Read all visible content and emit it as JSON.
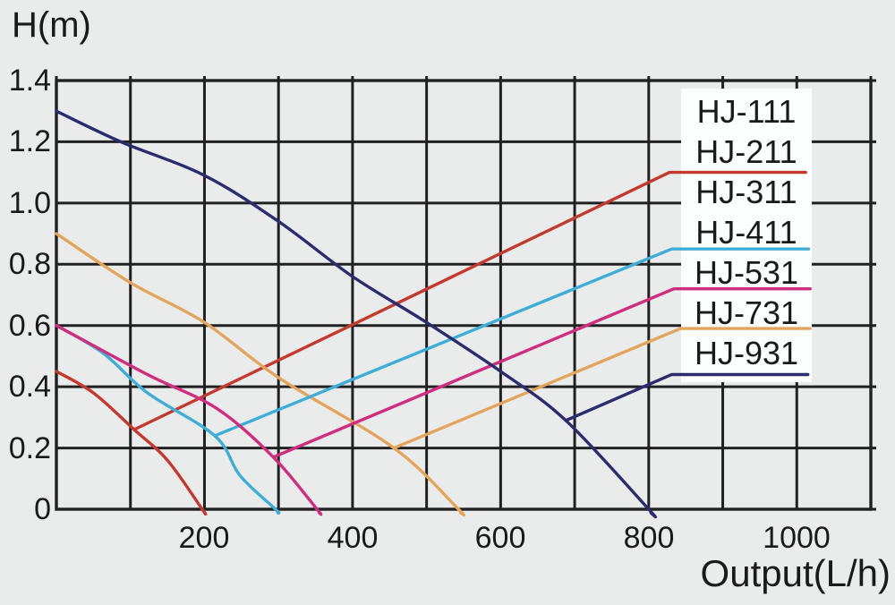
{
  "y_axis_title": "H(m)",
  "x_axis_title": "Output(L/h)",
  "axes": {
    "x": {
      "min": 0,
      "max": 1100,
      "grid_step": 100,
      "tick_values": [
        200,
        400,
        600,
        800,
        1000
      ],
      "tick_labels": [
        "200",
        "400",
        "600",
        "800",
        "1000"
      ]
    },
    "y": {
      "min": 0,
      "max": 1.4,
      "grid_step": 0.2,
      "tick_values": [
        1.4,
        1.2,
        1.0,
        0.8,
        0.6,
        0.4,
        0.2,
        0
      ],
      "tick_labels": [
        "1.4",
        "1.2",
        "1.0",
        "0.8",
        "0.6",
        "0.4",
        "0.2",
        "0"
      ]
    }
  },
  "legend": {
    "items": [
      "HJ-111",
      "HJ-211",
      "HJ-311",
      "HJ-411",
      "HJ-531",
      "HJ-731",
      "HJ-931"
    ]
  },
  "colors": {
    "background": "#e9eceb",
    "grid": "#212121",
    "text": "#1a1a1a",
    "legend_background": "#fcfdfd",
    "red": "#c4392f",
    "cyan": "#3fadd5",
    "magenta": "#ce2e7d",
    "orange": "#e3a55e",
    "navy": "#2b2b6d"
  },
  "chart_data": {
    "type": "line",
    "title": "",
    "xlabel": "Output(L/h)",
    "ylabel": "H(m)",
    "xlim": [
      0,
      1100
    ],
    "ylim": [
      0,
      1.4
    ],
    "grid": true,
    "x_gridline_step": 100,
    "y_gridline_step": 0.2,
    "legend_position": "right-overlay",
    "legend_items": [
      "HJ-111",
      "HJ-211",
      "HJ-311",
      "HJ-411",
      "HJ-531",
      "HJ-731",
      "HJ-931"
    ],
    "series": [
      {
        "name": "red",
        "color": "#c4392f",
        "associated_legend_label": "HJ-211",
        "pump_curve": [
          [
            0,
            0.45
          ],
          [
            50,
            0.38
          ],
          [
            105,
            0.26
          ],
          [
            150,
            0.16
          ],
          [
            197,
            0
          ]
        ],
        "rise_line": [
          [
            105,
            0.26
          ],
          [
            828,
            1.1
          ],
          [
            1012,
            1.1
          ]
        ]
      },
      {
        "name": "orange",
        "color": "#e3a55e",
        "associated_legend_label": "HJ-731",
        "pump_curve": [
          [
            0,
            0.9
          ],
          [
            100,
            0.74
          ],
          [
            200,
            0.61
          ],
          [
            300,
            0.43
          ],
          [
            456,
            0.2
          ],
          [
            543,
            0
          ]
        ],
        "rise_line": [
          [
            456,
            0.2
          ],
          [
            843,
            0.59
          ],
          [
            1018,
            0.59
          ]
        ]
      },
      {
        "name": "cyan",
        "color": "#3fadd5",
        "associated_legend_label": "HJ-411",
        "pump_curve": [
          [
            0,
            0.6
          ],
          [
            63,
            0.51
          ],
          [
            123,
            0.38
          ],
          [
            214,
            0.24
          ],
          [
            248,
            0.11
          ],
          [
            296,
            0
          ]
        ],
        "rise_line": [
          [
            214,
            0.24
          ],
          [
            831,
            0.85
          ],
          [
            1016,
            0.85
          ]
        ]
      },
      {
        "name": "magenta",
        "color": "#ce2e7d",
        "associated_legend_label": "HJ-531",
        "pump_curve": [
          [
            0,
            0.6
          ],
          [
            123,
            0.44
          ],
          [
            216,
            0.33
          ],
          [
            293,
            0.17
          ],
          [
            352,
            0
          ]
        ],
        "rise_line": [
          [
            293,
            0.17
          ],
          [
            834,
            0.72
          ],
          [
            1018,
            0.72
          ]
        ]
      },
      {
        "name": "navy",
        "color": "#2b2b6d",
        "associated_legend_label": "HJ-931",
        "pump_curve": [
          [
            0,
            1.3
          ],
          [
            87,
            1.2
          ],
          [
            200,
            1.09
          ],
          [
            300,
            0.94
          ],
          [
            400,
            0.76
          ],
          [
            500,
            0.61
          ],
          [
            600,
            0.45
          ],
          [
            688,
            0.29
          ],
          [
            800,
            0
          ]
        ],
        "rise_line": [
          [
            688,
            0.29
          ],
          [
            831,
            0.44
          ],
          [
            1015,
            0.44
          ]
        ]
      }
    ]
  }
}
